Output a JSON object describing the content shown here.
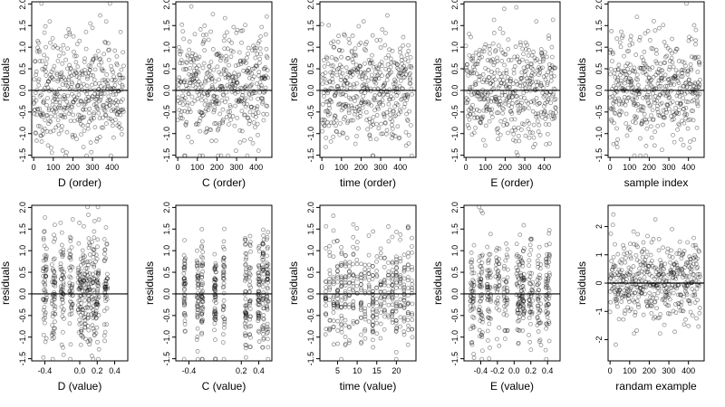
{
  "colors": {
    "points": "#000000",
    "reference_line": "#000000",
    "background": "#ffffff"
  },
  "chart_data": [
    {
      "type": "scatter",
      "xlabel": "D (order)",
      "ylabel": "residuals",
      "xlim": [
        -10,
        480
      ],
      "ylim": [
        -1.55,
        2.05
      ],
      "xticks": [
        0,
        100,
        200,
        300,
        400
      ],
      "xtick_labels": [
        "0",
        "100",
        "200",
        "300",
        "400"
      ],
      "yticks": [
        -1.5,
        -1.0,
        -0.5,
        0.0,
        0.5,
        1.0,
        1.5,
        2.0
      ],
      "ytick_labels": [
        "-1.5",
        "-1.0",
        "-0.5",
        "0.0",
        "0.5",
        "1.0",
        "1.5",
        "2.0"
      ],
      "reference_line_y": 0,
      "n_points": 460,
      "pattern": "index",
      "seed": 11
    },
    {
      "type": "scatter",
      "xlabel": "C (order)",
      "ylabel": "residuals",
      "xlim": [
        -10,
        480
      ],
      "ylim": [
        -1.55,
        2.05
      ],
      "xticks": [
        0,
        100,
        200,
        300,
        400
      ],
      "xtick_labels": [
        "0",
        "100",
        "200",
        "300",
        "400"
      ],
      "yticks": [
        -1.5,
        -1.0,
        -0.5,
        0.0,
        0.5,
        1.0,
        1.5,
        2.0
      ],
      "ytick_labels": [
        "-1.5",
        "-1.0",
        "-0.5",
        "0.0",
        "0.5",
        "1.0",
        "1.5",
        "2.0"
      ],
      "reference_line_y": 0,
      "n_points": 460,
      "pattern": "index",
      "seed": 23
    },
    {
      "type": "scatter",
      "xlabel": "time (order)",
      "ylabel": "residuals",
      "xlim": [
        -10,
        480
      ],
      "ylim": [
        -1.55,
        2.05
      ],
      "xticks": [
        0,
        100,
        200,
        300,
        400
      ],
      "xtick_labels": [
        "0",
        "100",
        "200",
        "300",
        "400"
      ],
      "yticks": [
        -1.5,
        -1.0,
        -0.5,
        0.0,
        0.5,
        1.0,
        1.5,
        2.0
      ],
      "ytick_labels": [
        "-1.5",
        "-1.0",
        "-0.5",
        "0.0",
        "0.5",
        "1.0",
        "1.5",
        "2.0"
      ],
      "reference_line_y": 0,
      "n_points": 460,
      "pattern": "index",
      "seed": 37
    },
    {
      "type": "scatter",
      "xlabel": "E (order)",
      "ylabel": "residuals",
      "xlim": [
        -10,
        480
      ],
      "ylim": [
        -1.55,
        2.05
      ],
      "xticks": [
        0,
        100,
        200,
        300,
        400
      ],
      "xtick_labels": [
        "0",
        "100",
        "200",
        "300",
        "400"
      ],
      "yticks": [
        -1.5,
        -1.0,
        -0.5,
        0.0,
        0.5,
        1.0,
        1.5,
        2.0
      ],
      "ytick_labels": [
        "-1.5",
        "-1.0",
        "-0.5",
        "0.0",
        "0.5",
        "1.0",
        "1.5",
        "2.0"
      ],
      "reference_line_y": 0,
      "n_points": 460,
      "pattern": "index",
      "seed": 41
    },
    {
      "type": "scatter",
      "xlabel": "sample index",
      "ylabel": "residuals",
      "xlim": [
        -10,
        480
      ],
      "ylim": [
        -1.55,
        2.05
      ],
      "xticks": [
        0,
        100,
        200,
        300,
        400
      ],
      "xtick_labels": [
        "0",
        "100",
        "200",
        "300",
        "400"
      ],
      "yticks": [
        -1.5,
        -1.0,
        -0.5,
        0.0,
        0.5,
        1.0,
        1.5,
        2.0
      ],
      "ytick_labels": [
        "-1.5",
        "-1.0",
        "-0.5",
        "0.0",
        "0.5",
        "1.0",
        "1.5",
        "2.0"
      ],
      "reference_line_y": 0,
      "n_points": 460,
      "pattern": "index",
      "seed": 53
    },
    {
      "type": "scatter",
      "xlabel": "D (value)",
      "ylabel": "residuals",
      "xlim": [
        -0.55,
        0.55
      ],
      "ylim": [
        -1.55,
        2.05
      ],
      "xticks": [
        -0.4,
        0.0,
        0.2,
        0.4
      ],
      "xtick_labels": [
        "-0.4",
        "0.0",
        "0.2",
        "0.4"
      ],
      "yticks": [
        -1.5,
        -1.0,
        -0.5,
        0.0,
        0.5,
        1.0,
        1.5,
        2.0
      ],
      "ytick_labels": [
        "-1.5",
        "-1.0",
        "-0.5",
        "0.0",
        "0.5",
        "1.0",
        "1.5",
        "2.0"
      ],
      "reference_line_y": 0,
      "n_points": 460,
      "pattern": "value",
      "column_positions": [
        -0.4,
        -0.3,
        -0.2,
        -0.1,
        0.0,
        0.05,
        0.1,
        0.15,
        0.2,
        0.3
      ],
      "spread": 0.04,
      "seed": 67
    },
    {
      "type": "scatter",
      "xlabel": "C (value)",
      "ylabel": "residuals",
      "xlim": [
        -0.55,
        0.55
      ],
      "ylim": [
        -1.55,
        2.05
      ],
      "xticks": [
        -0.4,
        0.2,
        0.4
      ],
      "xtick_labels": [
        "-0.4",
        "0.2",
        "0.4"
      ],
      "yticks": [
        -1.5,
        -1.0,
        -0.5,
        0.0,
        0.5,
        1.0,
        1.5,
        2.0
      ],
      "ytick_labels": [
        "-1.5",
        "-1.0",
        "-0.5",
        "0.0",
        "0.5",
        "1.0",
        "1.5",
        "2.0"
      ],
      "reference_line_y": 0,
      "n_points": 460,
      "pattern": "value",
      "column_positions": [
        -0.45,
        -0.3,
        -0.25,
        -0.1,
        0.0,
        0.25,
        0.3,
        0.4,
        0.45,
        0.5
      ],
      "spread": 0.02,
      "seed": 79
    },
    {
      "type": "scatter",
      "xlabel": "time (value)",
      "ylabel": "residuals",
      "xlim": [
        0.5,
        25
      ],
      "ylim": [
        -1.55,
        2.05
      ],
      "xticks": [
        5,
        10,
        15,
        20
      ],
      "xtick_labels": [
        "5",
        "10",
        "15",
        "20"
      ],
      "yticks": [
        -1.5,
        -1.0,
        -0.5,
        0.0,
        0.5,
        1.0,
        1.5,
        2.0
      ],
      "ytick_labels": [
        "-1.5",
        "-1.0",
        "-0.5",
        "0.0",
        "0.5",
        "1.0",
        "1.5",
        "2.0"
      ],
      "reference_line_y": 0,
      "n_points": 460,
      "pattern": "value",
      "column_positions": [
        2,
        3,
        4,
        5,
        6,
        7,
        8,
        9,
        10,
        11,
        12,
        13,
        14,
        15,
        16,
        17,
        18,
        19,
        20,
        21,
        22,
        23,
        24
      ],
      "spread": 0.15,
      "seed": 83
    },
    {
      "type": "scatter",
      "xlabel": "E (value)",
      "ylabel": "residuals",
      "xlim": [
        -0.6,
        0.55
      ],
      "ylim": [
        -1.55,
        2.05
      ],
      "xticks": [
        -0.4,
        -0.2,
        0.0,
        0.2,
        0.4
      ],
      "xtick_labels": [
        "-0.4",
        "-0.2",
        "0.0",
        "0.2",
        "0.4"
      ],
      "yticks": [
        -1.5,
        -1.0,
        -0.5,
        0.0,
        0.5,
        1.0,
        1.5,
        2.0
      ],
      "ytick_labels": [
        "-1.5",
        "-1.0",
        "-0.5",
        "0.0",
        "0.5",
        "1.0",
        "1.5",
        "2.0"
      ],
      "reference_line_y": 0,
      "n_points": 460,
      "pattern": "value",
      "column_positions": [
        -0.5,
        -0.4,
        -0.3,
        -0.2,
        -0.1,
        0.05,
        0.1,
        0.2,
        0.3,
        0.4
      ],
      "spread": 0.05,
      "seed": 97
    },
    {
      "type": "scatter",
      "xlabel": "randam example",
      "ylabel": "residuals",
      "xlim": [
        -10,
        480
      ],
      "ylim": [
        -2.75,
        2.75
      ],
      "xticks": [
        0,
        100,
        200,
        300,
        400
      ],
      "xtick_labels": [
        "0",
        "100",
        "200",
        "300",
        "400"
      ],
      "yticks": [
        -2,
        -1,
        0,
        1,
        2
      ],
      "ytick_labels": [
        "-2",
        "-1",
        "0",
        "1",
        "2"
      ],
      "reference_line_y": 0,
      "n_points": 460,
      "pattern": "index",
      "seed": 101,
      "scale": 1.1
    }
  ]
}
